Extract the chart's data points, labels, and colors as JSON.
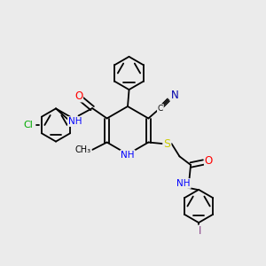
{
  "bg_color": "#ebebeb",
  "bond_color": "#000000",
  "atom_colors": {
    "C": "#000000",
    "N": "#0000ff",
    "O": "#ff0000",
    "S": "#cccc00",
    "Cl": "#00aa00",
    "I": "#884488",
    "H": "#000000",
    "NH": "#0000ff",
    "CN_N": "#0000aa"
  },
  "font_size": 7.5,
  "bond_width": 1.3
}
